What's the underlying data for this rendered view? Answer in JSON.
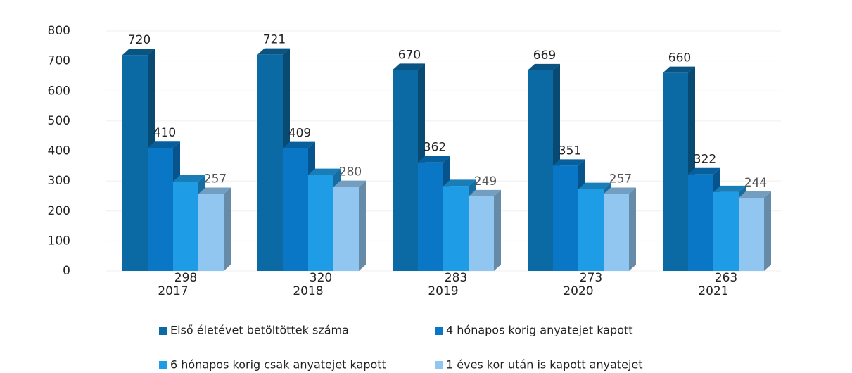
{
  "chart_data": {
    "type": "bar3d",
    "categories": [
      "2017",
      "2018",
      "2019",
      "2020",
      "2021"
    ],
    "series": [
      {
        "name": "Első életévet betöltöttek száma",
        "color": "#0b69a3",
        "values": [
          720,
          721,
          670,
          669,
          660
        ]
      },
      {
        "name": "4 hónapos korig anyatejet kapott",
        "color": "#0a77c6",
        "values": [
          410,
          409,
          362,
          351,
          322
        ]
      },
      {
        "name": "6 hónapos korig csak anyatejet kapott",
        "color": "#1f9ce6",
        "values": [
          298,
          320,
          283,
          273,
          263
        ]
      },
      {
        "name": "1 éves kor után is kapott anyatejet",
        "color": "#90c6f0",
        "values": [
          257,
          280,
          249,
          257,
          244
        ]
      }
    ],
    "ylim": [
      0,
      800
    ],
    "yticks": [
      0,
      100,
      200,
      300,
      400,
      500,
      600,
      700,
      800
    ],
    "grid": true
  }
}
